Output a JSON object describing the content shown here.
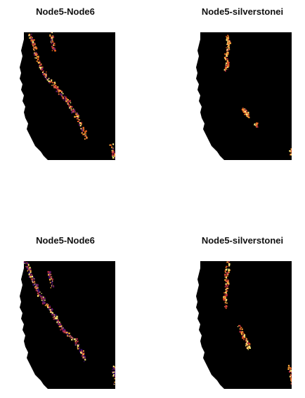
{
  "figure": {
    "panels": [
      {
        "title": "Node5-Node6",
        "background_color": "#000000",
        "hotspot_palette": [
          "#fde87a",
          "#f9a53a",
          "#e9641e",
          "#b92d43",
          "#6a1a6b"
        ]
      },
      {
        "title": "Node5-silverstonei",
        "background_color": "#000000",
        "hotspot_palette": [
          "#fde87a",
          "#f9a53a",
          "#e9641e",
          "#b92d43"
        ]
      },
      {
        "title": "Node5-Node6",
        "background_color": "#000000",
        "hotspot_palette": [
          "#fde87a",
          "#f9a53a",
          "#b92d43",
          "#6a1a6b",
          "#3b0f70"
        ]
      },
      {
        "title": "Node5-silverstonei",
        "background_color": "#000000",
        "hotspot_palette": [
          "#fde87a",
          "#f9a53a",
          "#e9641e",
          "#b92d43"
        ]
      }
    ]
  }
}
